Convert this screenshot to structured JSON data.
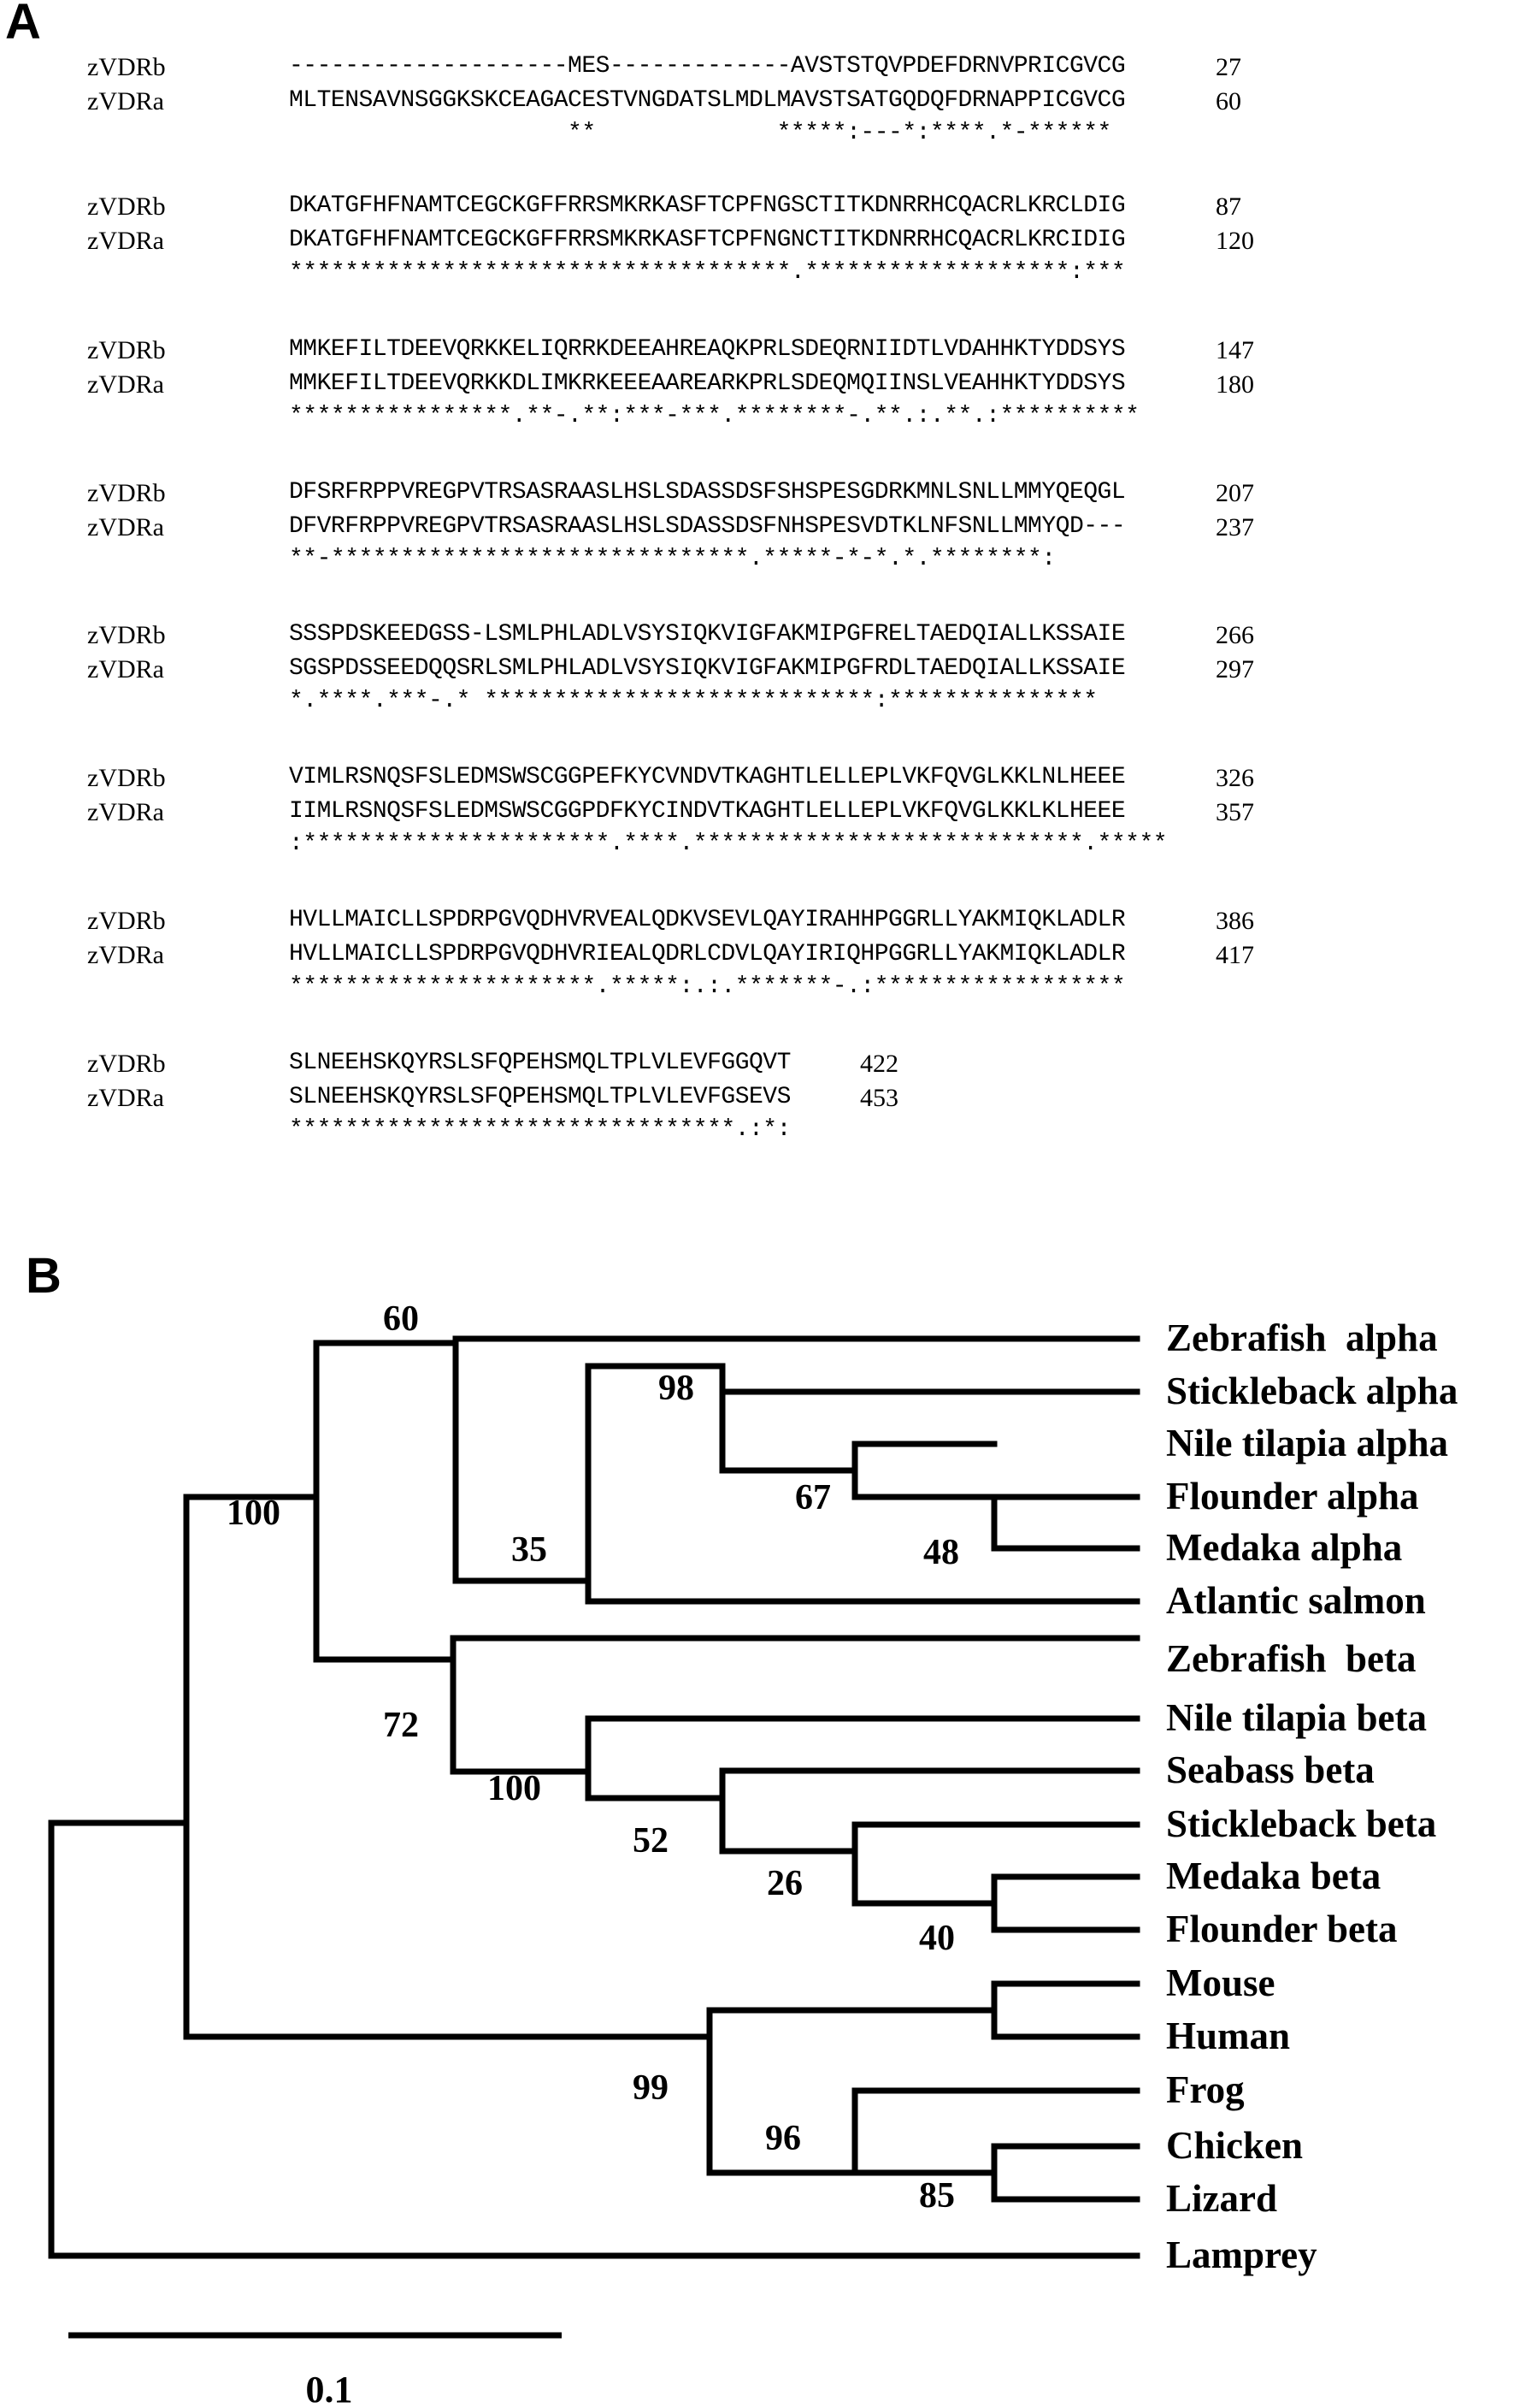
{
  "panel_a_label": "A",
  "panel_b_label": "B",
  "alignment": {
    "names": [
      "zVDRb",
      "zVDRa"
    ],
    "blocks": [
      {
        "b": "--------------------MES-------------AVSTSTQVPDEFDRNVPRICGVCG",
        "b_num": "27",
        "a": "MLTENSAVNSGGKSKCEAGACESTVNGDATSLMDLMAVSTSATGQDQFDRNAPPICGVCG",
        "a_num": "60",
        "cons": "                    **             *****:---*:****.*-******"
      },
      {
        "b": "DKATGFHFNAMTCEGCKGFFRRSMKRKASFTCPFNGSCTITKDNRRHCQACRLKRCLDIG",
        "b_num": "87",
        "a": "DKATGFHFNAMTCEGCKGFFRRSMKRKASFTCPFNGNCTITKDNRRHCQACRLKRCIDIG",
        "a_num": "120",
        "cons": "************************************.*******************:***"
      },
      {
        "b": "MMKEFILTDEEVQRKKELIQRRKDEEAHREAQKPRLSDEQRNIIDTLVDAHHKTYDDSYS",
        "b_num": "147",
        "a": "MMKEFILTDEEVQRKKDLIMKRKEEEAAREARKPRLSDEQMQIINSLVEAHHKTYDDSYS",
        "a_num": "180",
        "cons": "****************.**-.**:***-***.********-.**.:.**.:**********"
      },
      {
        "b": "DFSRFRPPVREGPVTRSASRAASLHSLSDASSDSFSHSPESGDRKMNLSNLLMMYQEQGL",
        "b_num": "207",
        "a": "DFVRFRPPVREGPVTRSASRAASLHSLSDASSDSFNHSPESVDTKLNFSNLLMMYQD---",
        "a_num": "237",
        "cons": "**-******************************.*****-*-*.*.********:"
      },
      {
        "b": "SSSPDSKEEDGSS-LSMLPHLADLVSYSIQKVIGFAKMIPGFRELTAEDQIALLKSSAIE",
        "b_num": "266",
        "a": "SGSPDSSEEDQQSRLSMLPHLADLVSYSIQKVIGFAKMIPGFRDLTAEDQIALLKSSAIE",
        "a_num": "297",
        "cons": "*.****.***-.* ****************************:***************"
      },
      {
        "b": "VIMLRSNQSFSLEDMSWSCGGPEFKYCVNDVTKAGHTLELLEPLVKFQVGLKKLNLHEEE",
        "b_num": "326",
        "a": "IIMLRSNQSFSLEDMSWSCGGPDFKYCINDVTKAGHTLELLEPLVKFQVGLKKLKLHEEE",
        "a_num": "357",
        "cons": ":**********************.****.****************************.*****"
      },
      {
        "b": "HVLLMAICLLSPDRPGVQDHVRVEALQDKVSEVLQAYIRAHHPGGRLLYAKMIQKLADLR",
        "b_num": "386",
        "a": "HVLLMAICLLSPDRPGVQDHVRIEALQDRLCDVLQAYIRIQHPGGRLLYAKMIQKLADLR",
        "a_num": "417",
        "cons": "**********************.*****:.:.*******-.:******************"
      },
      {
        "b": "SLNEEHSKQYRSLSFQPEHSMQLTPLVLEVFGGQVT",
        "b_num": "422",
        "a": "SLNEEHSKQYRSLSFQPEHSMQLTPLVLEVFGSEVS",
        "a_num": "453",
        "cons": "********************************.:*:"
      }
    ]
  },
  "tree": {
    "leaves": [
      "Zebrafish  alpha",
      "Stickleback alpha",
      "Nile tilapia alpha",
      "Flounder alpha",
      "Medaka alpha",
      "Atlantic salmon",
      "Zebrafish  beta",
      "Nile tilapia beta",
      "Seabass beta",
      "Stickleback beta",
      "Medaka beta",
      "Flounder beta",
      "Mouse",
      "Human",
      "Frog",
      "Chicken",
      "Lizard",
      "Lamprey"
    ],
    "bootstrap": [
      "100",
      "60",
      "98",
      "67",
      "48",
      "35",
      "72",
      "100",
      "52",
      "26",
      "40",
      "99",
      "96",
      "85"
    ],
    "scale_label": "0.1"
  }
}
